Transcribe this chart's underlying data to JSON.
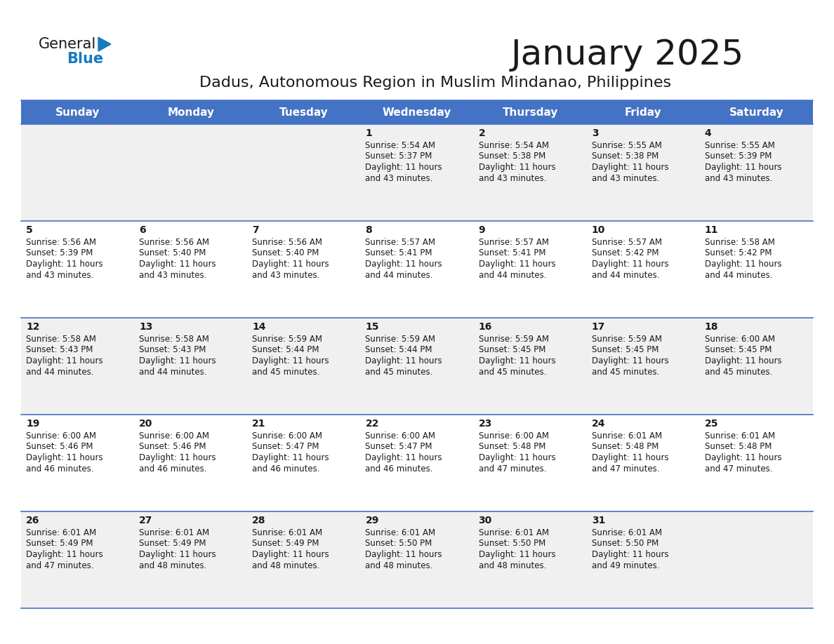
{
  "title": "January 2025",
  "subtitle": "Dadus, Autonomous Region in Muslim Mindanao, Philippines",
  "header_bg_color": "#4472C4",
  "header_text_color": "#FFFFFF",
  "row_bg_color_odd": "#F0F0F0",
  "row_bg_color_even": "#FFFFFF",
  "border_color": "#4472C4",
  "day_headers": [
    "Sunday",
    "Monday",
    "Tuesday",
    "Wednesday",
    "Thursday",
    "Friday",
    "Saturday"
  ],
  "calendar_data": [
    [
      {
        "day": "",
        "sunrise": "",
        "sunset": "",
        "daylight": ""
      },
      {
        "day": "",
        "sunrise": "",
        "sunset": "",
        "daylight": ""
      },
      {
        "day": "",
        "sunrise": "",
        "sunset": "",
        "daylight": ""
      },
      {
        "day": "1",
        "sunrise": "5:54 AM",
        "sunset": "5:37 PM",
        "daylight_h": "11 hours",
        "daylight_m": "and 43 minutes."
      },
      {
        "day": "2",
        "sunrise": "5:54 AM",
        "sunset": "5:38 PM",
        "daylight_h": "11 hours",
        "daylight_m": "and 43 minutes."
      },
      {
        "day": "3",
        "sunrise": "5:55 AM",
        "sunset": "5:38 PM",
        "daylight_h": "11 hours",
        "daylight_m": "and 43 minutes."
      },
      {
        "day": "4",
        "sunrise": "5:55 AM",
        "sunset": "5:39 PM",
        "daylight_h": "11 hours",
        "daylight_m": "and 43 minutes."
      }
    ],
    [
      {
        "day": "5",
        "sunrise": "5:56 AM",
        "sunset": "5:39 PM",
        "daylight_h": "11 hours",
        "daylight_m": "and 43 minutes."
      },
      {
        "day": "6",
        "sunrise": "5:56 AM",
        "sunset": "5:40 PM",
        "daylight_h": "11 hours",
        "daylight_m": "and 43 minutes."
      },
      {
        "day": "7",
        "sunrise": "5:56 AM",
        "sunset": "5:40 PM",
        "daylight_h": "11 hours",
        "daylight_m": "and 43 minutes."
      },
      {
        "day": "8",
        "sunrise": "5:57 AM",
        "sunset": "5:41 PM",
        "daylight_h": "11 hours",
        "daylight_m": "and 44 minutes."
      },
      {
        "day": "9",
        "sunrise": "5:57 AM",
        "sunset": "5:41 PM",
        "daylight_h": "11 hours",
        "daylight_m": "and 44 minutes."
      },
      {
        "day": "10",
        "sunrise": "5:57 AM",
        "sunset": "5:42 PM",
        "daylight_h": "11 hours",
        "daylight_m": "and 44 minutes."
      },
      {
        "day": "11",
        "sunrise": "5:58 AM",
        "sunset": "5:42 PM",
        "daylight_h": "11 hours",
        "daylight_m": "and 44 minutes."
      }
    ],
    [
      {
        "day": "12",
        "sunrise": "5:58 AM",
        "sunset": "5:43 PM",
        "daylight_h": "11 hours",
        "daylight_m": "and 44 minutes."
      },
      {
        "day": "13",
        "sunrise": "5:58 AM",
        "sunset": "5:43 PM",
        "daylight_h": "11 hours",
        "daylight_m": "and 44 minutes."
      },
      {
        "day": "14",
        "sunrise": "5:59 AM",
        "sunset": "5:44 PM",
        "daylight_h": "11 hours",
        "daylight_m": "and 45 minutes."
      },
      {
        "day": "15",
        "sunrise": "5:59 AM",
        "sunset": "5:44 PM",
        "daylight_h": "11 hours",
        "daylight_m": "and 45 minutes."
      },
      {
        "day": "16",
        "sunrise": "5:59 AM",
        "sunset": "5:45 PM",
        "daylight_h": "11 hours",
        "daylight_m": "and 45 minutes."
      },
      {
        "day": "17",
        "sunrise": "5:59 AM",
        "sunset": "5:45 PM",
        "daylight_h": "11 hours",
        "daylight_m": "and 45 minutes."
      },
      {
        "day": "18",
        "sunrise": "6:00 AM",
        "sunset": "5:45 PM",
        "daylight_h": "11 hours",
        "daylight_m": "and 45 minutes."
      }
    ],
    [
      {
        "day": "19",
        "sunrise": "6:00 AM",
        "sunset": "5:46 PM",
        "daylight_h": "11 hours",
        "daylight_m": "and 46 minutes."
      },
      {
        "day": "20",
        "sunrise": "6:00 AM",
        "sunset": "5:46 PM",
        "daylight_h": "11 hours",
        "daylight_m": "and 46 minutes."
      },
      {
        "day": "21",
        "sunrise": "6:00 AM",
        "sunset": "5:47 PM",
        "daylight_h": "11 hours",
        "daylight_m": "and 46 minutes."
      },
      {
        "day": "22",
        "sunrise": "6:00 AM",
        "sunset": "5:47 PM",
        "daylight_h": "11 hours",
        "daylight_m": "and 46 minutes."
      },
      {
        "day": "23",
        "sunrise": "6:00 AM",
        "sunset": "5:48 PM",
        "daylight_h": "11 hours",
        "daylight_m": "and 47 minutes."
      },
      {
        "day": "24",
        "sunrise": "6:01 AM",
        "sunset": "5:48 PM",
        "daylight_h": "11 hours",
        "daylight_m": "and 47 minutes."
      },
      {
        "day": "25",
        "sunrise": "6:01 AM",
        "sunset": "5:48 PM",
        "daylight_h": "11 hours",
        "daylight_m": "and 47 minutes."
      }
    ],
    [
      {
        "day": "26",
        "sunrise": "6:01 AM",
        "sunset": "5:49 PM",
        "daylight_h": "11 hours",
        "daylight_m": "and 47 minutes."
      },
      {
        "day": "27",
        "sunrise": "6:01 AM",
        "sunset": "5:49 PM",
        "daylight_h": "11 hours",
        "daylight_m": "and 48 minutes."
      },
      {
        "day": "28",
        "sunrise": "6:01 AM",
        "sunset": "5:49 PM",
        "daylight_h": "11 hours",
        "daylight_m": "and 48 minutes."
      },
      {
        "day": "29",
        "sunrise": "6:01 AM",
        "sunset": "5:50 PM",
        "daylight_h": "11 hours",
        "daylight_m": "and 48 minutes."
      },
      {
        "day": "30",
        "sunrise": "6:01 AM",
        "sunset": "5:50 PM",
        "daylight_h": "11 hours",
        "daylight_m": "and 48 minutes."
      },
      {
        "day": "31",
        "sunrise": "6:01 AM",
        "sunset": "5:50 PM",
        "daylight_h": "11 hours",
        "daylight_m": "and 49 minutes."
      },
      {
        "day": "",
        "sunrise": "",
        "sunset": "",
        "daylight_h": "",
        "daylight_m": ""
      }
    ]
  ],
  "logo_general_color": "#1a1a1a",
  "logo_blue_color": "#1a7abf",
  "logo_triangle_color": "#1a7abf",
  "title_fontsize": 36,
  "subtitle_fontsize": 16,
  "header_fontsize": 11,
  "cell_day_fontsize": 10,
  "cell_text_fontsize": 8.5
}
